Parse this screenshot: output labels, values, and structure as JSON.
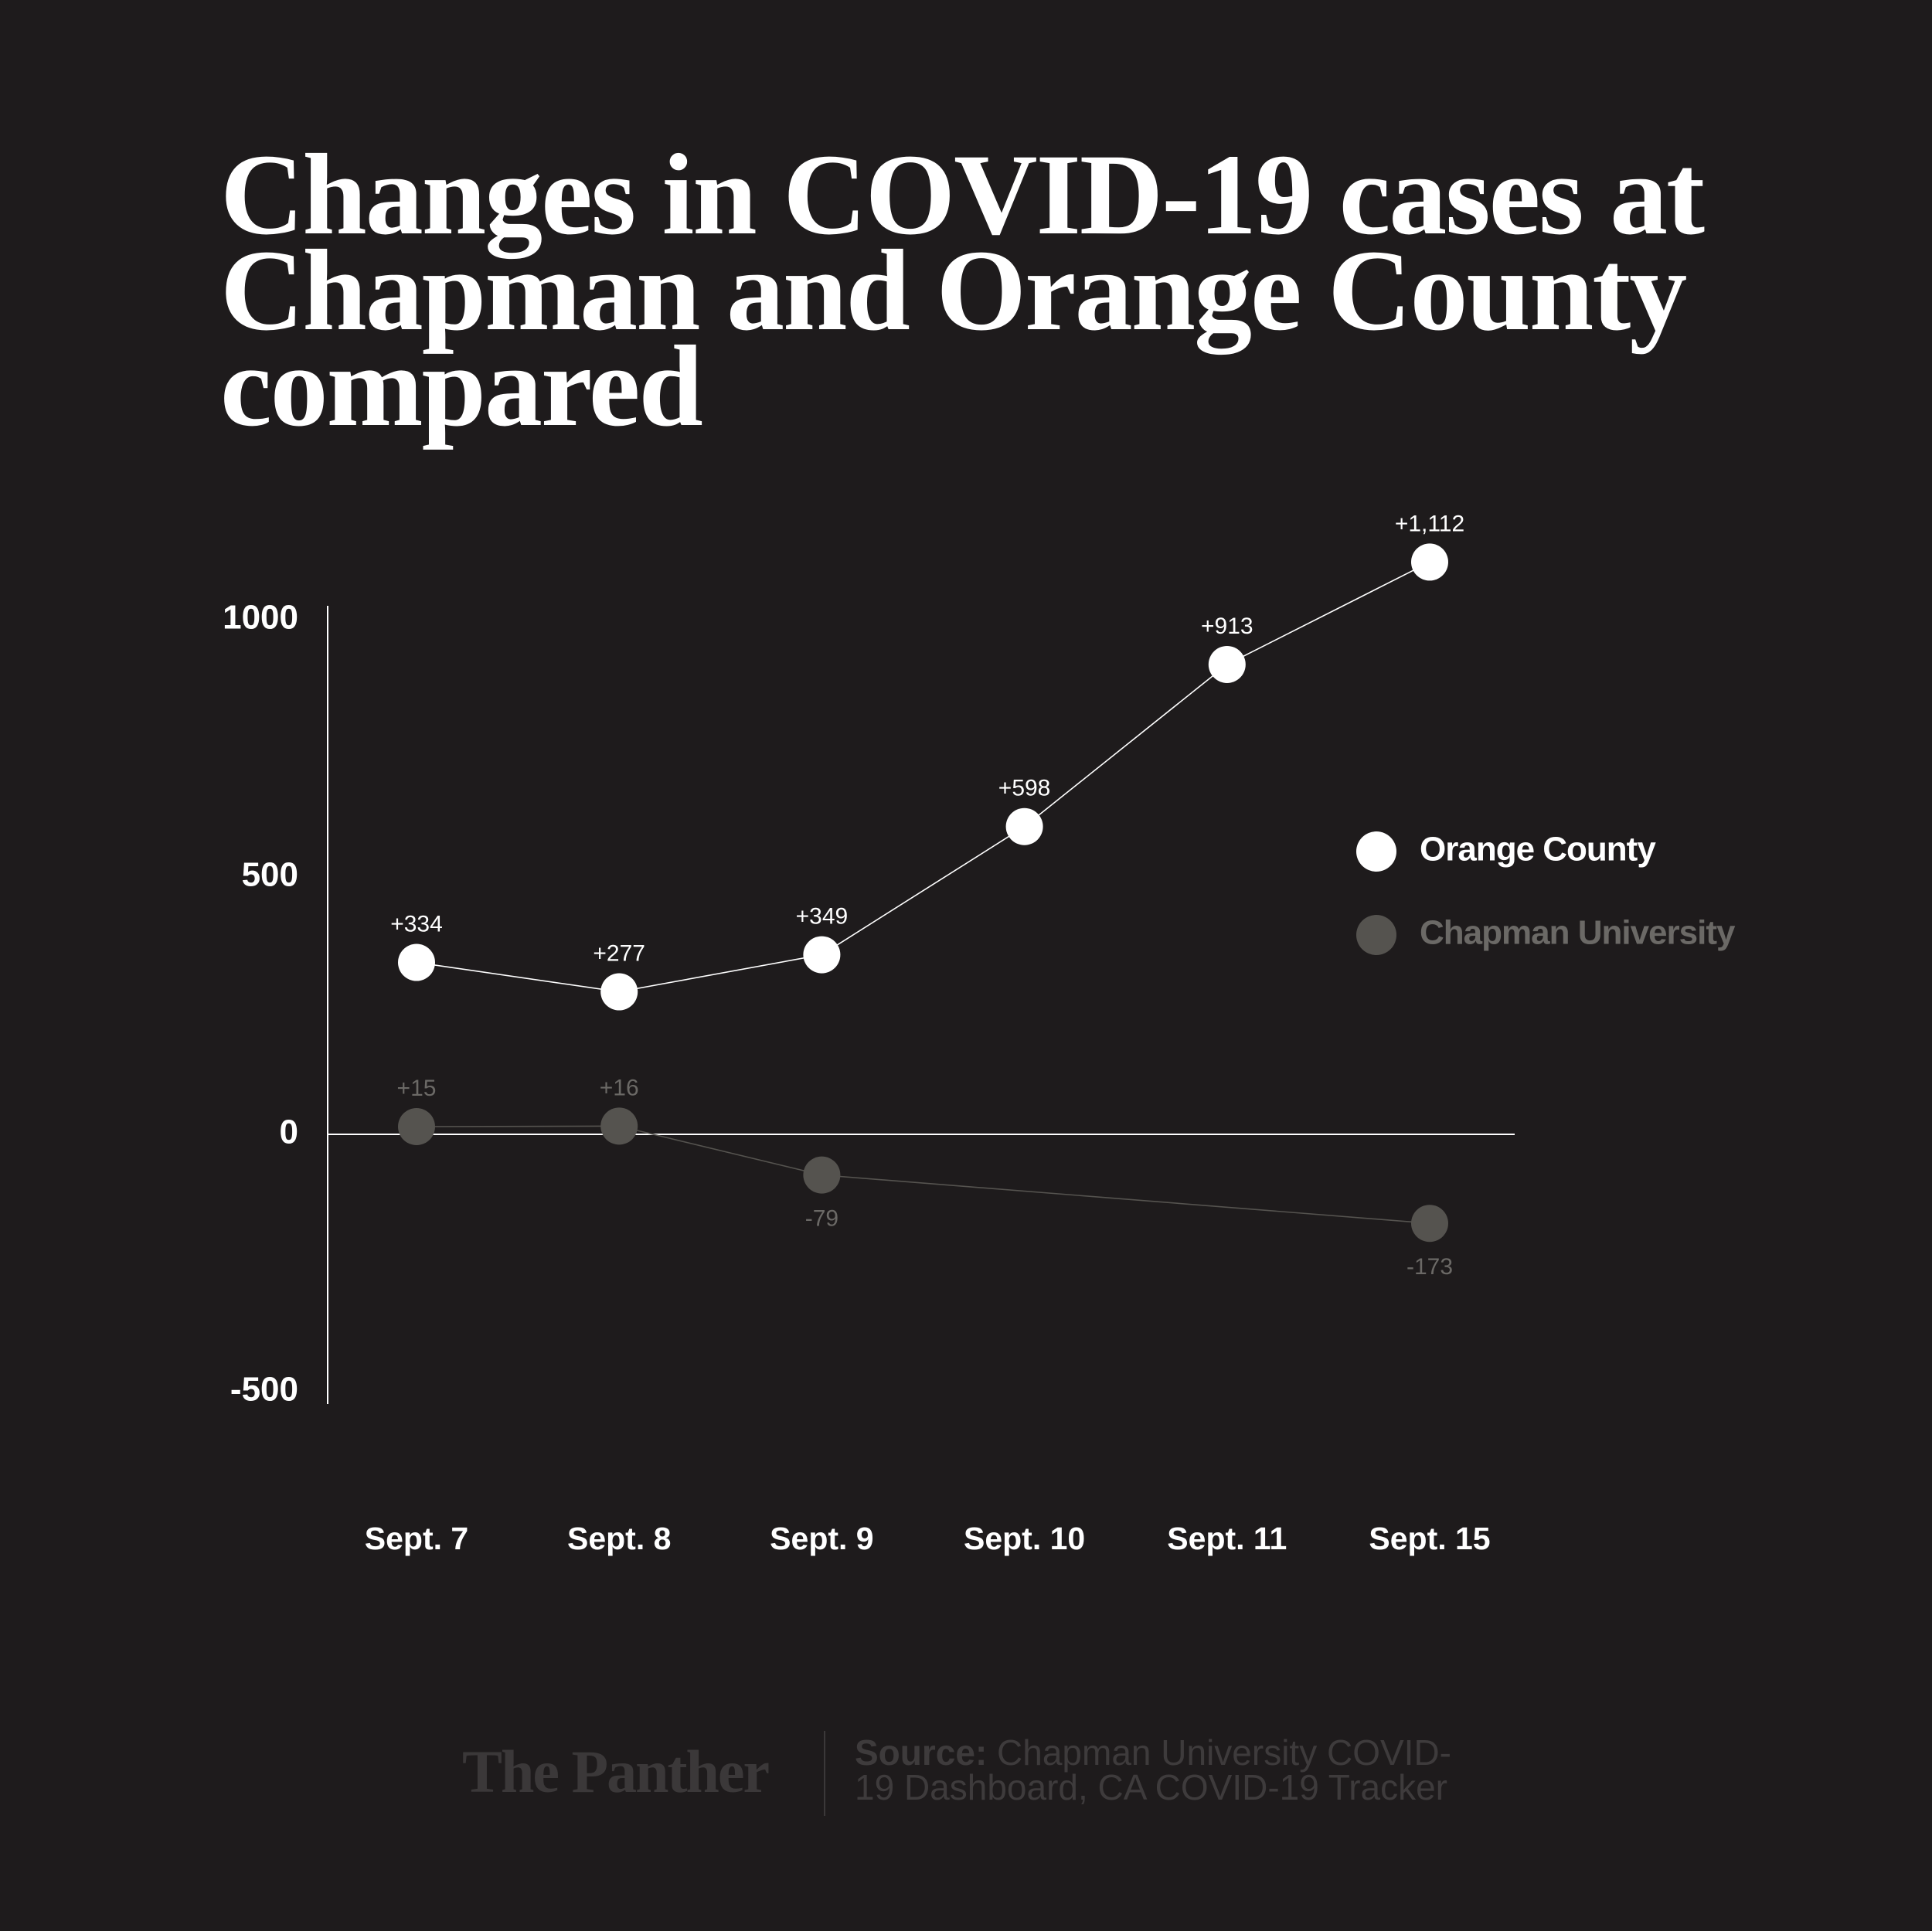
{
  "chart_data": {
    "type": "line",
    "title": "Changes in COVID-19 cases at Chapman and Orange County compared",
    "categories": [
      "Sept. 7",
      "Sept. 8",
      "Sept. 9",
      "Sept. 10",
      "Sept. 11",
      "Sept. 15"
    ],
    "series": [
      {
        "name": "Orange County",
        "color": "#ffffff",
        "label_color": "#ffffff",
        "values": [
          334,
          277,
          349,
          598,
          913,
          1112
        ],
        "value_labels": [
          "+334",
          "+277",
          "+349",
          "+598",
          "+913",
          "+1,112"
        ]
      },
      {
        "name": "Chapman University",
        "color": "#55534f",
        "label_color": "#6b6966",
        "values": [
          15,
          16,
          -79,
          null,
          null,
          -173
        ],
        "value_labels": [
          "+15",
          "+16",
          "-79",
          null,
          null,
          "-173"
        ]
      }
    ],
    "ylim": [
      -500,
      1000
    ],
    "yticks": [
      1000,
      500,
      0,
      -500
    ],
    "grid": false,
    "legend": "right",
    "brand": "The Panther",
    "source_label": "Source:",
    "source": "Chapman University COVID-19 Dashboard, CA COVID-19 Tracker"
  }
}
